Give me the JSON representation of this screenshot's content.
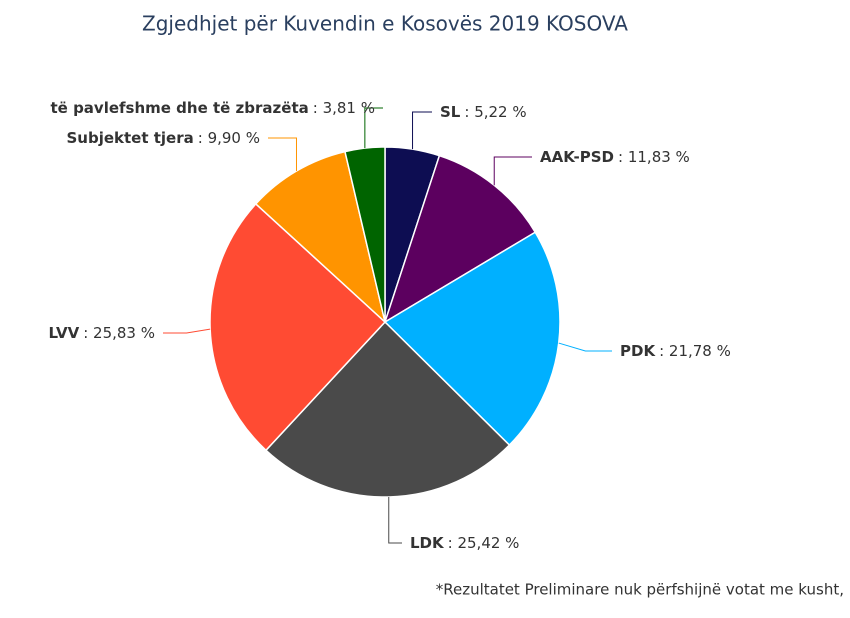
{
  "chart_data": {
    "type": "pie",
    "title": "Zgjedhjet për Kuvendin e Kosovës 2019 KOSOVA",
    "categories": [
      "SL",
      "AAK-PSD",
      "PDK",
      "LDK",
      "LVV",
      "Subjektet tjera",
      "të pavlefshme dhe të zbrazëta"
    ],
    "values": [
      5.22,
      11.83,
      21.78,
      25.42,
      25.83,
      9.9,
      3.81
    ],
    "value_labels": [
      ": 5,22 %",
      ": 11,83 %",
      ": 21,78 %",
      ": 25,42 %",
      ": 25,83 %",
      ": 9,90 %",
      ": 3,81 %"
    ],
    "colors": [
      "#0d0d52",
      "#5c005f",
      "#00b0ff",
      "#4a4a4a",
      "#ff4b33",
      "#ff9400",
      "#006400"
    ],
    "note": "*Rezultatet Preliminare nuk përfshijnë votat me kusht,"
  }
}
